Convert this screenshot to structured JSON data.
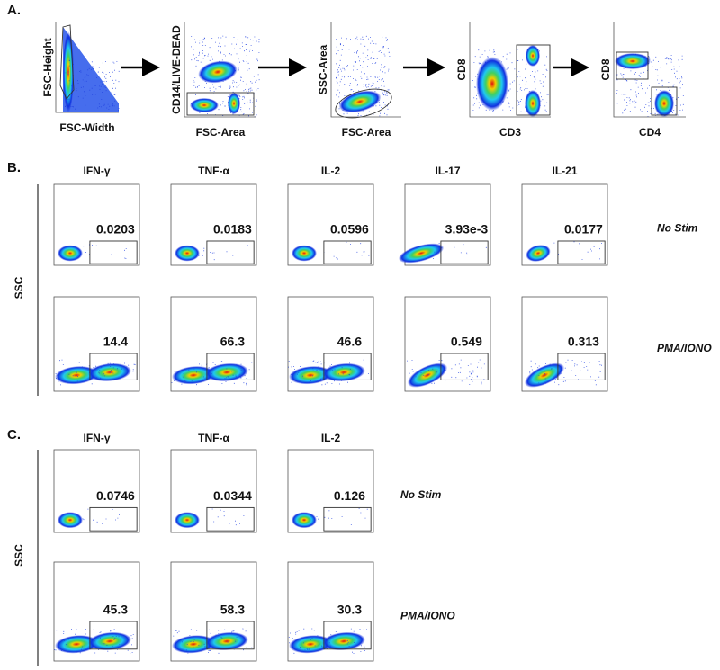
{
  "panel_a": {
    "label": "A.",
    "plots": [
      {
        "y_label": "FSC-Height",
        "x_label": "FSC-Width"
      },
      {
        "y_label": "CD14/LIVE-DEAD",
        "x_label": "FSC-Area"
      },
      {
        "y_label": "SSC-Area",
        "x_label": "FSC-Area"
      },
      {
        "y_label": "CD8",
        "x_label": "CD3"
      },
      {
        "y_label": "CD8",
        "x_label": "CD4"
      }
    ]
  },
  "panel_b": {
    "label": "B.",
    "y_label": "SSC",
    "columns": [
      "IFN-γ",
      "TNF-α",
      "IL-2",
      "IL-17",
      "IL-21"
    ],
    "rows": [
      {
        "condition": "No Stim",
        "gate_values": [
          "0.0203",
          "0.0183",
          "0.0596",
          "3.93e-3",
          "0.0177"
        ]
      },
      {
        "condition": "PMA/IONO",
        "gate_values": [
          "14.4",
          "66.3",
          "46.6",
          "0.549",
          "0.313"
        ]
      }
    ]
  },
  "panel_c": {
    "label": "C.",
    "y_label": "SSC",
    "columns": [
      "IFN-γ",
      "TNF-α",
      "IL-2"
    ],
    "rows": [
      {
        "condition": "No Stim",
        "gate_values": [
          "0.0746",
          "0.0344",
          "0.126"
        ]
      },
      {
        "condition": "PMA/IONO",
        "gate_values": [
          "45.3",
          "58.3",
          "30.3"
        ]
      }
    ]
  }
}
